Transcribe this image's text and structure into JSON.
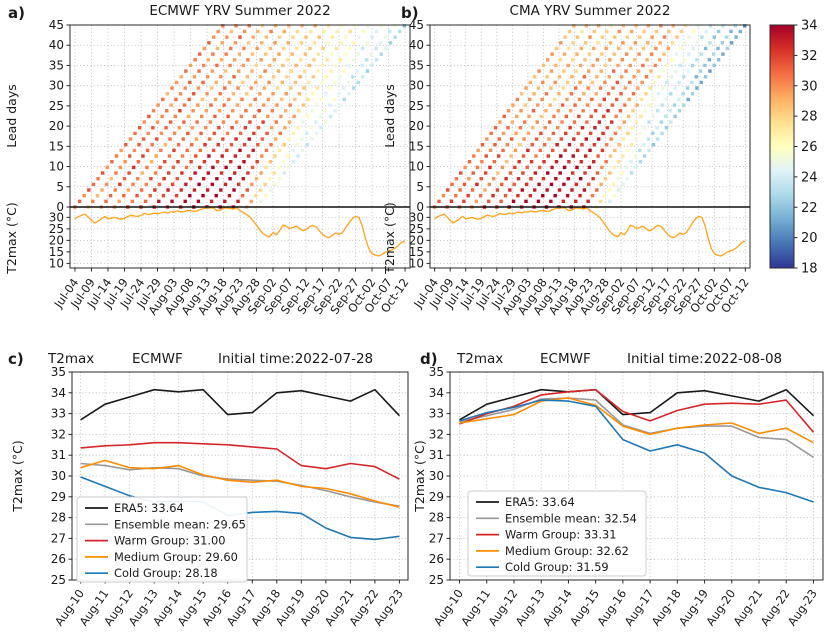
{
  "shared": {
    "observed_t2max": [
      29.4,
      30.3,
      30.9,
      31.4,
      30.2,
      28.6,
      27.6,
      28.4,
      29.3,
      30.4,
      29.4,
      29.6,
      30.0,
      29.5,
      29.2,
      29.6,
      30.4,
      30.9,
      30.6,
      30.4,
      30.9,
      31.7,
      31.3,
      31.4,
      31.9,
      31.5,
      31.9,
      32.3,
      31.9,
      32.4,
      32.3,
      32.8,
      32.4,
      32.5,
      32.9,
      33.0,
      32.6,
      32.7,
      33.45,
      33.8,
      34.15,
      34.05,
      34.15,
      32.95,
      33.05,
      34.0,
      34.1,
      33.85,
      33.6,
      34.15,
      32.9,
      32.1,
      31.2,
      30.1,
      28.4,
      26.6,
      24.6,
      23.0,
      22.0,
      21.6,
      23.4,
      22.4,
      24.2,
      26.6,
      26.1,
      25.2,
      25.6,
      26.2,
      25.2,
      24.2,
      24.6,
      25.9,
      26.5,
      26.0,
      24.2,
      22.6,
      21.6,
      21.2,
      22.2,
      23.2,
      22.6,
      23.4,
      25.4,
      27.6,
      29.4,
      30.4,
      30.0,
      26.5,
      21.0,
      16.5,
      14.2,
      13.6,
      13.2,
      13.8,
      14.8,
      15.3,
      15.8,
      16.6,
      17.8,
      19.2,
      19.6
    ],
    "observed_color": "#ffa520",
    "colormap": {
      "values": [
        34,
        32.4,
        30.8,
        29.2,
        27.6,
        26.0,
        24.4,
        22.8,
        21.2,
        19.6,
        18.0
      ],
      "colors": [
        "#a50026",
        "#d73027",
        "#f46d43",
        "#fdae61",
        "#fee090",
        "#ffffbf",
        "#e0f3f8",
        "#abd9e9",
        "#74add1",
        "#4575b4",
        "#313695"
      ]
    },
    "series_colors": {
      "era5": "#1a1a1a",
      "ensemble": "#999999",
      "warm": "#d62728",
      "medium": "#ff8c00",
      "cold": "#1f77b4"
    }
  },
  "colorbar": {
    "ticks": [
      34,
      32,
      30,
      28,
      26,
      24,
      22,
      20,
      18
    ],
    "vmin": 18,
    "vmax": 34
  },
  "chart_data": [
    {
      "type": "heatmap",
      "panel_label": "a)",
      "title": "ECMWF YRV Summer 2022",
      "ylabel": "Lead days",
      "ylabel2": "T2max (°C)",
      "lead_ticks": [
        0,
        5,
        10,
        15,
        20,
        25,
        30,
        35,
        40,
        45
      ],
      "obs_ticks": [
        30,
        25,
        20,
        15,
        10
      ],
      "x_tick_labels": [
        "Jul-04",
        "Jul-09",
        "Jul-14",
        "Jul-19",
        "Jul-24",
        "Jul-29",
        "Aug-03",
        "Aug-08",
        "Aug-13",
        "Aug-18",
        "Aug-23",
        "Aug-28",
        "Sep-02",
        "Sep-07",
        "Sep-12",
        "Sep-17",
        "Sep-22",
        "Sep-27",
        "Oct-02",
        "Oct-07",
        "Oct-12"
      ],
      "x_total_days": 100,
      "lead_max": 45,
      "forecasts": [
        {
          "init_day": 0,
          "init_label": "Jul-04",
          "lead_points": [
            0,
            10,
            20,
            30,
            45
          ],
          "temps": [
            30.3,
            30.8,
            30.4,
            30.0,
            30.2
          ]
        },
        {
          "init_day": 4,
          "init_label": "Jul-08",
          "lead_points": [
            0,
            10,
            20,
            30,
            45
          ],
          "temps": [
            29.2,
            30.2,
            30.6,
            30.1,
            29.6
          ]
        },
        {
          "init_day": 8,
          "init_label": "Jul-12",
          "lead_points": [
            0,
            10,
            20,
            30,
            45
          ],
          "temps": [
            30.8,
            31.4,
            31.0,
            30.5,
            30.0
          ]
        },
        {
          "init_day": 12,
          "init_label": "Jul-16",
          "lead_points": [
            0,
            10,
            20,
            30,
            45
          ],
          "temps": [
            29.6,
            30.0,
            29.8,
            29.4,
            29.0
          ]
        },
        {
          "init_day": 16,
          "init_label": "Jul-20",
          "lead_points": [
            0,
            10,
            20,
            30,
            45
          ],
          "temps": [
            31.3,
            31.0,
            30.6,
            30.0,
            29.4
          ]
        },
        {
          "init_day": 20,
          "init_label": "Jul-24",
          "lead_points": [
            0,
            10,
            20,
            30,
            45
          ],
          "temps": [
            31.6,
            31.3,
            30.4,
            29.2,
            28.4
          ]
        },
        {
          "init_day": 24,
          "init_label": "Jul-28",
          "lead_points": [
            0,
            10,
            20,
            30,
            45
          ],
          "temps": [
            32.4,
            31.8,
            30.8,
            29.4,
            28.4
          ]
        },
        {
          "init_day": 28,
          "init_label": "Aug-01",
          "lead_points": [
            0,
            10,
            20,
            30,
            45
          ],
          "temps": [
            33.0,
            32.4,
            31.0,
            29.0,
            27.8
          ]
        },
        {
          "init_day": 32,
          "init_label": "Aug-05",
          "lead_points": [
            0,
            10,
            20,
            30,
            45
          ],
          "temps": [
            33.6,
            33.0,
            31.4,
            28.8,
            27.4
          ]
        },
        {
          "init_day": 36,
          "init_label": "Aug-09",
          "lead_points": [
            0,
            10,
            20,
            30,
            45
          ],
          "temps": [
            34.0,
            33.4,
            31.4,
            28.6,
            26.8
          ]
        },
        {
          "init_day": 40,
          "init_label": "Aug-13",
          "lead_points": [
            0,
            10,
            20,
            30,
            45
          ],
          "temps": [
            34.0,
            33.0,
            30.6,
            27.8,
            26.2
          ]
        },
        {
          "init_day": 44,
          "init_label": "Aug-17",
          "lead_points": [
            0,
            10,
            20,
            30,
            45
          ],
          "temps": [
            33.6,
            31.8,
            29.2,
            26.8,
            25.2
          ]
        },
        {
          "init_day": 48,
          "init_label": "Aug-21",
          "lead_points": [
            0,
            10,
            20,
            30,
            45
          ],
          "temps": [
            33.0,
            28.4,
            26.0,
            25.2,
            24.6
          ]
        },
        {
          "init_day": 52,
          "init_label": "Aug-25",
          "lead_points": [
            0,
            10,
            20,
            30,
            45
          ],
          "temps": [
            29.6,
            25.8,
            24.8,
            24.4,
            24.0
          ]
        },
        {
          "init_day": 55,
          "init_label": "Aug-28",
          "lead_points": [
            0,
            10,
            20,
            30,
            45
          ],
          "temps": [
            25.4,
            24.6,
            24.2,
            23.6,
            22.6
          ]
        }
      ]
    },
    {
      "type": "heatmap",
      "panel_label": "b)",
      "title": "CMA YRV Summer 2022",
      "ylabel": "Lead days",
      "ylabel2": "T2max (°C)",
      "lead_ticks": [
        0,
        5,
        10,
        15,
        20,
        25,
        30,
        35,
        40,
        45
      ],
      "obs_ticks": [
        30,
        25,
        20,
        15,
        10
      ],
      "x_tick_labels": [
        "Jul-04",
        "Jul-09",
        "Jul-14",
        "Jul-19",
        "Jul-24",
        "Jul-29",
        "Aug-03",
        "Aug-08",
        "Aug-13",
        "Aug-18",
        "Aug-23",
        "Aug-28",
        "Sep-02",
        "Sep-07",
        "Sep-12",
        "Sep-17",
        "Sep-22",
        "Sep-27",
        "Oct-02",
        "Oct-07",
        "Oct-12"
      ],
      "x_total_days": 100,
      "lead_max": 45,
      "forecasts": [
        {
          "init_day": 0,
          "init_label": "Jul-04",
          "lead_points": [
            0,
            10,
            20,
            30,
            45
          ],
          "temps": [
            30.4,
            30.9,
            30.2,
            29.4,
            28.6
          ]
        },
        {
          "init_day": 4,
          "init_label": "Jul-08",
          "lead_points": [
            0,
            10,
            20,
            30,
            45
          ],
          "temps": [
            31.4,
            30.8,
            30.0,
            29.0,
            28.2
          ]
        },
        {
          "init_day": 8,
          "init_label": "Jul-12",
          "lead_points": [
            0,
            10,
            20,
            30,
            45
          ],
          "temps": [
            32.0,
            31.4,
            30.4,
            29.4,
            28.6
          ]
        },
        {
          "init_day": 12,
          "init_label": "Jul-16",
          "lead_points": [
            0,
            10,
            20,
            30,
            45
          ],
          "temps": [
            29.8,
            29.4,
            29.0,
            28.6,
            28.0
          ]
        },
        {
          "init_day": 16,
          "init_label": "Jul-20",
          "lead_points": [
            0,
            10,
            20,
            30,
            45
          ],
          "temps": [
            32.4,
            31.8,
            31.0,
            30.0,
            29.0
          ]
        },
        {
          "init_day": 20,
          "init_label": "Jul-24",
          "lead_points": [
            0,
            10,
            20,
            30,
            45
          ],
          "temps": [
            31.8,
            31.4,
            30.4,
            29.4,
            28.4
          ]
        },
        {
          "init_day": 24,
          "init_label": "Jul-28",
          "lead_points": [
            0,
            10,
            20,
            30,
            45
          ],
          "temps": [
            33.0,
            32.4,
            31.4,
            30.0,
            28.8
          ]
        },
        {
          "init_day": 28,
          "init_label": "Aug-01",
          "lead_points": [
            0,
            10,
            20,
            30,
            45
          ],
          "temps": [
            33.6,
            33.0,
            32.0,
            30.4,
            28.8
          ]
        },
        {
          "init_day": 32,
          "init_label": "Aug-05",
          "lead_points": [
            0,
            10,
            20,
            30,
            45
          ],
          "temps": [
            34.0,
            33.4,
            32.4,
            30.4,
            28.8
          ]
        },
        {
          "init_day": 36,
          "init_label": "Aug-09",
          "lead_points": [
            0,
            10,
            20,
            30,
            45
          ],
          "temps": [
            34.0,
            33.4,
            31.8,
            29.8,
            28.2
          ]
        },
        {
          "init_day": 40,
          "init_label": "Aug-13",
          "lead_points": [
            0,
            10,
            20,
            30,
            45
          ],
          "temps": [
            34.0,
            32.4,
            29.6,
            26.8,
            24.8
          ]
        },
        {
          "init_day": 44,
          "init_label": "Aug-17",
          "lead_points": [
            0,
            10,
            20,
            30,
            45
          ],
          "temps": [
            33.4,
            30.6,
            26.6,
            24.8,
            23.6
          ]
        },
        {
          "init_day": 48,
          "init_label": "Aug-21",
          "lead_points": [
            0,
            10,
            20,
            30,
            45
          ],
          "temps": [
            32.8,
            27.4,
            24.6,
            23.4,
            22.6
          ]
        },
        {
          "init_day": 52,
          "init_label": "Aug-25",
          "lead_points": [
            0,
            10,
            20,
            30,
            45
          ],
          "temps": [
            27.6,
            24.6,
            23.4,
            22.6,
            21.8
          ]
        },
        {
          "init_day": 55,
          "init_label": "Aug-28",
          "lead_points": [
            0,
            10,
            20,
            30,
            45
          ],
          "temps": [
            24.8,
            23.6,
            22.6,
            21.8,
            21.0
          ]
        }
      ]
    },
    {
      "type": "line",
      "panel_label": "c)",
      "title_parts": [
        "T2max",
        "ECMWF",
        "Initial time:2022-07-28"
      ],
      "ylabel": "T2max (°C)",
      "ylim": [
        25,
        35
      ],
      "y_ticks": [
        25,
        26,
        27,
        28,
        29,
        30,
        31,
        32,
        33,
        34,
        35
      ],
      "x_labels": [
        "Aug-10",
        "Aug-11",
        "Aug-12",
        "Aug-13",
        "Aug-14",
        "Aug-15",
        "Aug-16",
        "Aug-17",
        "Aug-18",
        "Aug-19",
        "Aug-20",
        "Aug-21",
        "Aug-22",
        "Aug-23"
      ],
      "series": [
        {
          "name": "ERA5",
          "legend": "ERA5: 33.64",
          "color_key": "era5",
          "values": [
            32.7,
            33.45,
            33.8,
            34.15,
            34.05,
            34.15,
            32.95,
            33.05,
            34.0,
            34.1,
            33.85,
            33.6,
            34.15,
            32.9
          ]
        },
        {
          "name": "Ensemble mean",
          "legend": "Ensemble mean: 29.65",
          "color_key": "ensemble",
          "values": [
            30.6,
            30.5,
            30.3,
            30.4,
            30.35,
            30.0,
            29.85,
            29.8,
            29.75,
            29.55,
            29.3,
            29.0,
            28.75,
            28.55
          ]
        },
        {
          "name": "Warm Group",
          "legend": "Warm Group: 31.00",
          "color_key": "warm",
          "values": [
            31.35,
            31.45,
            31.5,
            31.6,
            31.6,
            31.55,
            31.5,
            31.4,
            31.3,
            30.5,
            30.35,
            30.6,
            30.45,
            29.85
          ]
        },
        {
          "name": "Medium Group",
          "legend": "Medium Group: 29.60",
          "color_key": "medium",
          "values": [
            30.4,
            30.75,
            30.4,
            30.35,
            30.5,
            30.05,
            29.8,
            29.7,
            29.8,
            29.5,
            29.4,
            29.15,
            28.8,
            28.5
          ]
        },
        {
          "name": "Cold Group",
          "legend": "Cold Group: 28.18",
          "color_key": "cold",
          "values": [
            29.95,
            29.5,
            29.05,
            28.75,
            28.8,
            28.75,
            28.1,
            28.25,
            28.3,
            28.2,
            27.5,
            27.05,
            26.95,
            27.1
          ]
        }
      ]
    },
    {
      "type": "line",
      "panel_label": "d)",
      "title_parts": [
        "T2max",
        "ECMWF",
        "Initial time:2022-08-08"
      ],
      "ylabel": "T2max (°C)",
      "ylim": [
        25,
        35
      ],
      "y_ticks": [
        25,
        26,
        27,
        28,
        29,
        30,
        31,
        32,
        33,
        34,
        35
      ],
      "x_labels": [
        "Aug-10",
        "Aug-11",
        "Aug-12",
        "Aug-13",
        "Aug-14",
        "Aug-15",
        "Aug-16",
        "Aug-17",
        "Aug-18",
        "Aug-19",
        "Aug-20",
        "Aug-21",
        "Aug-22",
        "Aug-23"
      ],
      "series": [
        {
          "name": "ERA5",
          "legend": "ERA5: 33.64",
          "color_key": "era5",
          "values": [
            32.7,
            33.45,
            33.8,
            34.15,
            34.05,
            34.15,
            32.95,
            33.05,
            34.0,
            34.1,
            33.85,
            33.6,
            34.15,
            32.9
          ]
        },
        {
          "name": "Ensemble mean",
          "legend": "Ensemble mean: 32.54",
          "color_key": "ensemble",
          "values": [
            32.6,
            32.9,
            33.2,
            33.7,
            33.75,
            33.65,
            32.45,
            32.05,
            32.3,
            32.4,
            32.4,
            31.85,
            31.75,
            30.9
          ]
        },
        {
          "name": "Warm Group",
          "legend": "Warm Group: 33.31",
          "color_key": "warm",
          "values": [
            32.5,
            33.0,
            33.35,
            33.9,
            34.05,
            34.15,
            33.1,
            32.65,
            33.15,
            33.45,
            33.5,
            33.45,
            33.65,
            32.1
          ]
        },
        {
          "name": "Medium Group",
          "legend": "Medium Group: 32.62",
          "color_key": "medium",
          "values": [
            32.55,
            32.75,
            32.95,
            33.6,
            33.75,
            33.4,
            32.4,
            32.0,
            32.3,
            32.45,
            32.55,
            32.05,
            32.3,
            31.6
          ]
        },
        {
          "name": "Cold Group",
          "legend": "Cold Group: 31.59",
          "color_key": "cold",
          "values": [
            32.65,
            33.05,
            33.3,
            33.65,
            33.6,
            33.35,
            31.75,
            31.2,
            31.5,
            31.1,
            30.0,
            29.45,
            29.2,
            28.75
          ]
        }
      ]
    }
  ]
}
